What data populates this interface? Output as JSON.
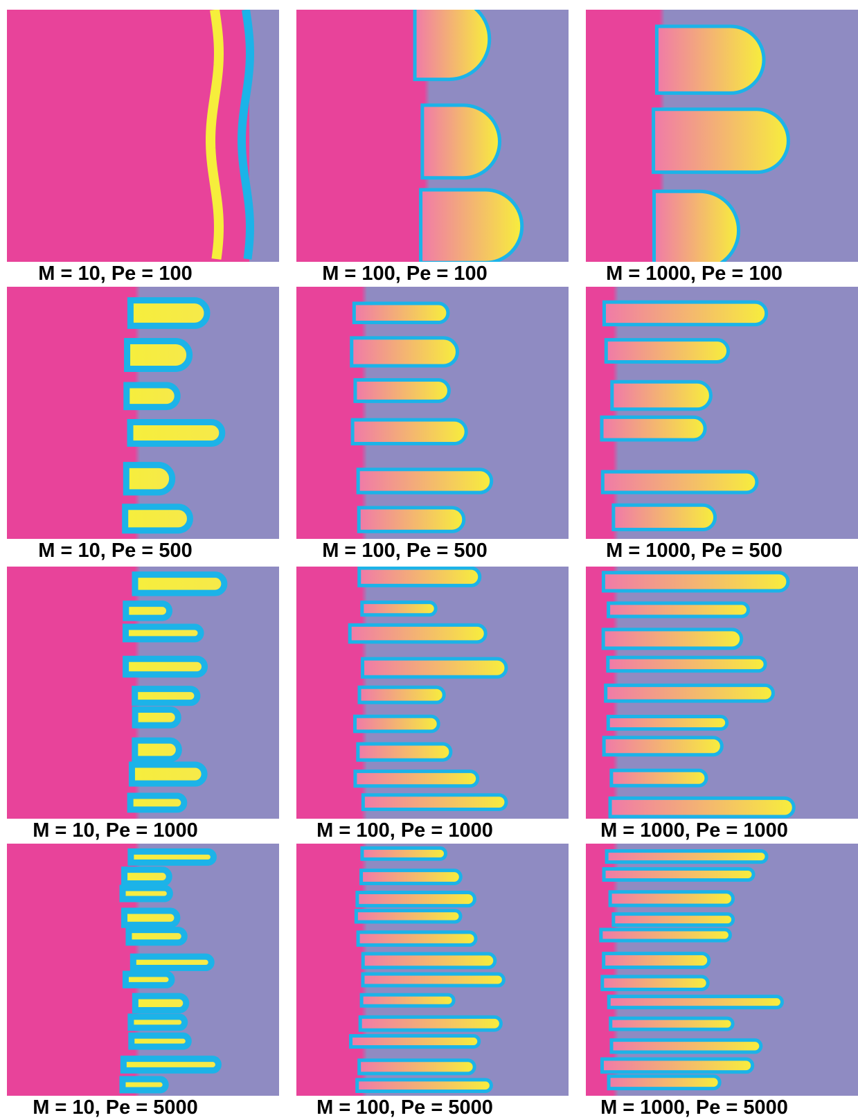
{
  "panels": [
    {
      "caption": "M = 10, Pe = 100"
    },
    {
      "caption": "M = 100, Pe = 100"
    },
    {
      "caption": "M = 1000, Pe = 100"
    },
    {
      "caption": "M = 10, Pe = 500"
    },
    {
      "caption": "M = 100, Pe = 500"
    },
    {
      "caption": "M = 1000, Pe = 500"
    },
    {
      "caption": "M = 10, Pe = 1000"
    },
    {
      "caption": "M = 100, Pe = 1000"
    },
    {
      "caption": "M = 1000, Pe = 1000"
    },
    {
      "caption": "M = 10, Pe = 5000"
    },
    {
      "caption": "M = 100, Pe = 5000"
    },
    {
      "caption": "M = 1000, Pe = 5000"
    }
  ]
}
